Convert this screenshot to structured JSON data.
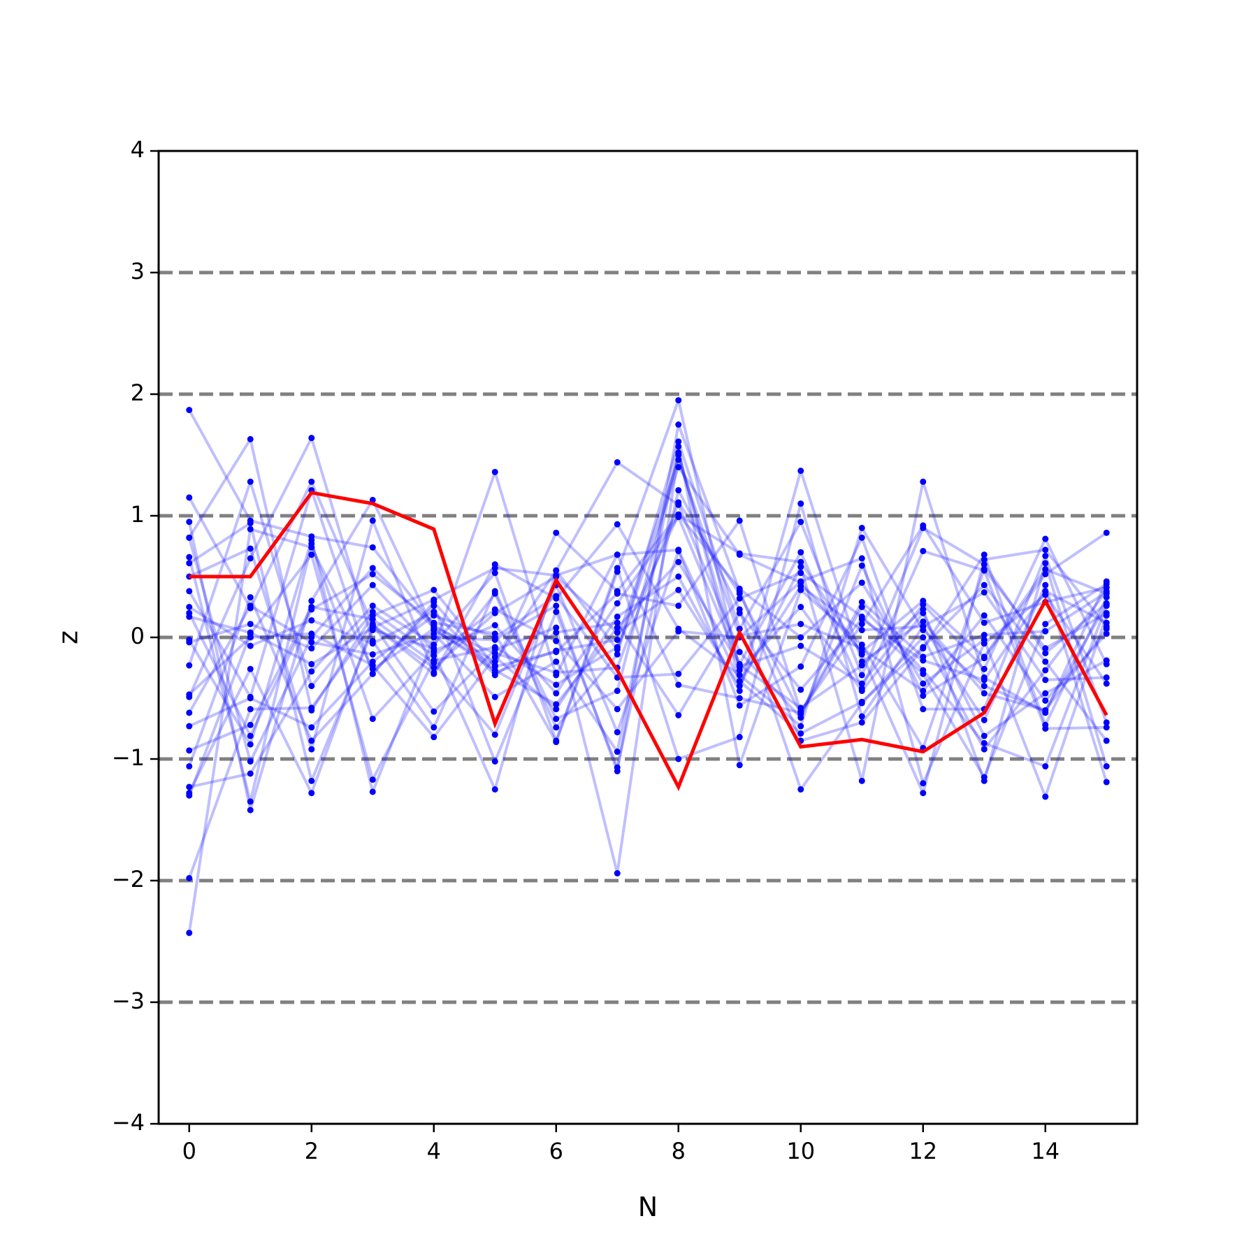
{
  "chart_data": {
    "type": "line",
    "title": "",
    "xlabel": "N",
    "ylabel": "z",
    "xlim": [
      -0.5,
      15.5
    ],
    "ylim": [
      -4,
      4
    ],
    "xticks": [
      0,
      2,
      4,
      6,
      8,
      10,
      12,
      14
    ],
    "yticks": [
      -4,
      -3,
      -2,
      -1,
      0,
      1,
      2,
      3,
      4
    ],
    "xtick_labels": [
      "0",
      "2",
      "4",
      "6",
      "8",
      "10",
      "12",
      "14"
    ],
    "ytick_labels": [
      "−4",
      "−3",
      "−2",
      "−1",
      "0",
      "1",
      "2",
      "3",
      "4"
    ],
    "reference_lines_y": [
      -3,
      -2,
      -1,
      0,
      1,
      2,
      3
    ],
    "grid": false,
    "colors": {
      "samples": "#0000ff",
      "highlight": "#ff0000",
      "reference": "#808080"
    },
    "x": [
      0,
      1,
      2,
      3,
      4,
      5,
      6,
      7,
      8,
      9,
      10,
      11,
      12,
      13,
      14,
      15
    ],
    "highlight_series": {
      "values": [
        0.5,
        0.5,
        1.19,
        1.1,
        0.89,
        -0.71,
        0.47,
        -0.27,
        -1.23,
        0.04,
        -0.9,
        -0.84,
        -0.94,
        -0.62,
        0.3,
        -0.64
      ]
    },
    "background_series": [
      {
        "values": [
          1.87,
          0.96,
          0.83,
          0.74,
          0.1,
          -0.2,
          0.55,
          -0.1,
          1.4,
          0.68,
          0.45,
          -0.12,
          0.3,
          -0.16,
          0.56,
          0.36
        ]
      },
      {
        "values": [
          1.15,
          0.24,
          1.28,
          0.1,
          -0.3,
          0.6,
          0.32,
          0.93,
          0.07,
          -0.31,
          -0.73,
          0.9,
          0.06,
          -0.4,
          -0.6,
          0.27
        ]
      },
      {
        "values": [
          0.95,
          -1.42,
          0.3,
          1.13,
          0.06,
          -0.23,
          0.86,
          0.38,
          1.01,
          0.69,
          0.62,
          -0.14,
          -1.28,
          0.64,
          0.72,
          0.09
        ]
      },
      {
        "values": [
          0.82,
          1.63,
          -0.6,
          0.18,
          0.39,
          -0.24,
          -0.12,
          0.36,
          0.26,
          0.96,
          -0.61,
          0.11,
          0.92,
          0.12,
          0.29,
          0.41
        ]
      },
      {
        "values": [
          0.66,
          -1.35,
          0.77,
          -0.67,
          -0.12,
          -1.25,
          0.55,
          1.44,
          1.09,
          -0.12,
          -0.66,
          0.59,
          -0.48,
          -0.17,
          0.52,
          0.86
        ]
      },
      {
        "values": [
          0.61,
          0.94,
          -1.18,
          0.06,
          -0.09,
          1.36,
          -0.31,
          0.68,
          0.72,
          -0.36,
          0.42,
          0.06,
          0.09,
          0.37,
          -0.35,
          -0.33
        ]
      },
      {
        "values": [
          0.5,
          0.73,
          -0.92,
          0.96,
          -0.29,
          0.36,
          -0.74,
          -0.14,
          1.61,
          0.07,
          0.95,
          -0.31,
          0.9,
          0.6,
          -0.13,
          0.28
        ]
      },
      {
        "values": [
          0.38,
          -0.49,
          1.21,
          -0.3,
          0.26,
          -1.02,
          0.21,
          -1.07,
          1.21,
          0.23,
          -1.25,
          -0.54,
          0.0,
          -0.92,
          -0.27,
          0.38
        ]
      },
      {
        "values": [
          0.2,
          -0.81,
          0.23,
          0.52,
          0.12,
          0.03,
          -0.86,
          0.54,
          1.95,
          -0.27,
          0.25,
          -0.44,
          0.2,
          -0.81,
          -0.46,
          -0.19
        ]
      },
      {
        "values": [
          0.17,
          0.04,
          -0.22,
          0.08,
          0.31,
          0.57,
          0.51,
          0.68,
          -0.39,
          -0.5,
          -0.62,
          0.29,
          -0.16,
          0.02,
          0.05,
          0.37
        ]
      },
      {
        "values": [
          -0.02,
          -0.88,
          0.8,
          -1.27,
          0.0,
          -0.02,
          0.26,
          -1.1,
          1.75,
          0.38,
          -0.85,
          -0.7,
          -0.09,
          0.68,
          -0.72,
          0.33
        ]
      },
      {
        "values": [
          -0.23,
          1.28,
          -0.4,
          0.21,
          -0.15,
          0.23,
          -0.03,
          -0.59,
          0.05,
          0.0,
          0.46,
          0.65,
          -1.2,
          -0.05,
          0.35,
          -0.38
        ]
      },
      {
        "values": [
          -0.47,
          0.0,
          0.03,
          -0.23,
          -0.82,
          -0.16,
          -0.59,
          0.17,
          0.5,
          -0.44,
          1.37,
          -0.2,
          0.13,
          -0.46,
          -0.6,
          0.07
        ]
      },
      {
        "values": [
          -0.49,
          0.65,
          1.64,
          -0.03,
          -0.74,
          0.38,
          -0.67,
          -0.44,
          1.5,
          -0.24,
          -0.07,
          -0.38,
          0.27,
          -0.26,
          0.81,
          -0.22
        ]
      },
      {
        "values": [
          -0.62,
          0.26,
          -0.04,
          -0.14,
          0.03,
          -0.49,
          -0.2,
          -0.94,
          1.57,
          -1.05,
          0.39,
          -0.06,
          -0.91,
          0.56,
          -0.09,
          0.2
        ]
      },
      {
        "values": [
          -0.73,
          -0.5,
          -0.74,
          -0.2,
          0.18,
          0.0,
          0.34,
          -0.33,
          -0.3,
          0.32,
          0.53,
          0.17,
          -0.3,
          -1.15,
          0.11,
          0.44
        ]
      },
      {
        "values": [
          -0.93,
          -0.72,
          0.25,
          0.15,
          -0.21,
          -0.8,
          0.43,
          -0.78,
          0.71,
          -0.56,
          -0.24,
          0.82,
          -0.59,
          -0.59,
          0.67,
          -0.7
        ]
      },
      {
        "values": [
          -1.06,
          0.33,
          -0.85,
          -0.3,
          0.29,
          -0.29,
          -0.11,
          -0.02,
          1.46,
          0.01,
          0.11,
          -0.09,
          -0.44,
          0.18,
          -0.52,
          0.03
        ]
      },
      {
        "values": [
          -1.23,
          -1.12,
          -0.28,
          0.26,
          -0.06,
          0.53,
          -0.85,
          0.57,
          -1.0,
          -0.82,
          1.1,
          -0.65,
          0.09,
          -0.68,
          0.43,
          -1.19
        ]
      },
      {
        "values": [
          -1.28,
          -0.26,
          -1.28,
          0.1,
          -0.25,
          0.2,
          0.5,
          0.04,
          0.39,
          -0.4,
          0.58,
          -1.18,
          1.28,
          -0.33,
          -0.62,
          0.46
        ]
      },
      {
        "values": [
          -1.3,
          0.03,
          0.68,
          -1.17,
          -0.19,
          -0.08,
          -0.39,
          -0.08,
          1.01,
          0.4,
          0.0,
          0.45,
          -0.38,
          -0.02,
          -1.31,
          0.18
        ]
      },
      {
        "values": [
          -1.98,
          -0.59,
          -0.58,
          0.11,
          -0.61,
          -0.1,
          0.08,
          -1.94,
          1.52,
          -0.36,
          -0.79,
          -0.53,
          -0.08,
          0.43,
          -0.2,
          -0.85
        ]
      },
      {
        "values": [
          -2.43,
          0.89,
          0.74,
          -0.26,
          0.07,
          -0.27,
          -0.55,
          0.08,
          0.62,
          -0.23,
          -0.58,
          -0.23,
          0.23,
          -1.18,
          0.61,
          -1.06
        ]
      },
      {
        "values": [
          0.82,
          -1.02,
          0.0,
          0.57,
          0.08,
          -0.13,
          -0.29,
          -0.25,
          1.11,
          0.36,
          -0.63,
          0.25,
          -0.27,
          -0.87,
          -1.06,
          0.26
        ]
      },
      {
        "values": [
          -0.04,
          0.11,
          -0.09,
          0.43,
          -0.11,
          0.1,
          -0.46,
          0.28,
          0.99,
          -0.22,
          0.7,
          -0.42,
          0.71,
          0.55,
          -0.75,
          -0.74
        ]
      },
      {
        "values": [
          0.25,
          -0.07,
          0.14,
          -0.05,
          0.21,
          -0.31,
          0.04,
          0.12,
          -0.64,
          0.2,
          -0.43,
          0.15,
          -0.19,
          -0.35,
          0.38,
          0.12
        ]
      }
    ]
  }
}
